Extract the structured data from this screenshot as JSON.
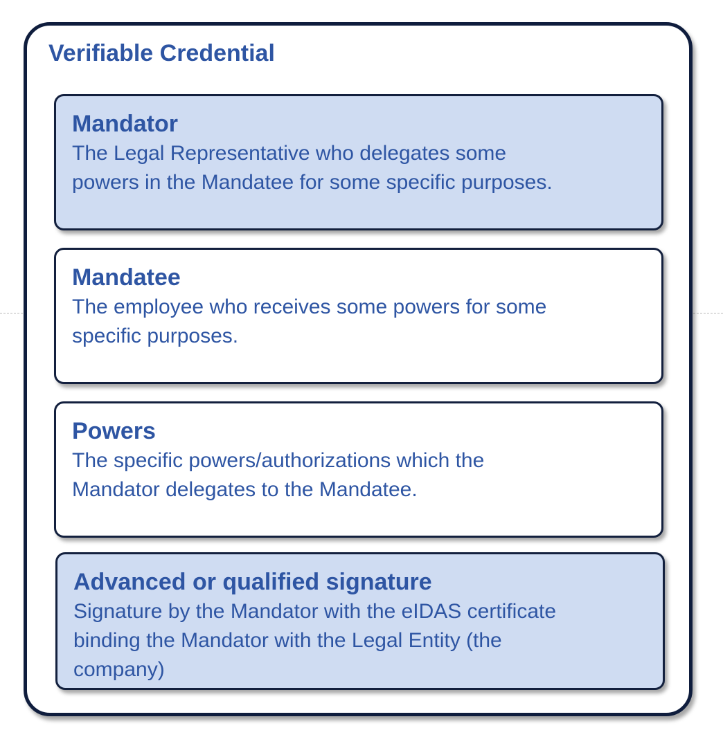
{
  "title": "Verifiable Credential",
  "cards": [
    {
      "title": "Mandator",
      "desc_lines": [
        "The Legal Representative who delegates some",
        "powers in the Mandatee for some specific purposes."
      ]
    },
    {
      "title": "Mandatee",
      "desc_lines": [
        "The employee who receives some powers for some",
        "specific purposes."
      ]
    },
    {
      "title": "Powers",
      "desc_lines": [
        "The specific powers/authorizations which the",
        "Mandator delegates to the Mandatee."
      ]
    },
    {
      "title": "Advanced or qualified signature",
      "desc_lines": [
        "Signature by the Mandator with the eIDAS certificate",
        "binding the Mandator with the Legal Entity (the",
        "company)"
      ]
    }
  ],
  "colors": {
    "text": "#2e55a3",
    "shaded_card": "#cfdcf2",
    "border": "#13203e"
  }
}
